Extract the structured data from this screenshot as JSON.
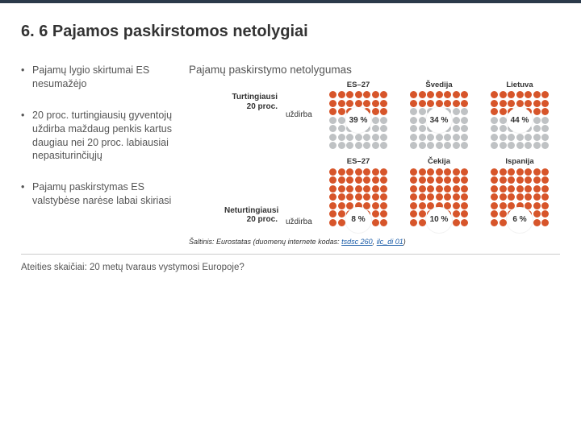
{
  "title": "6. 6 Pajamos paskirstomos netolygiai",
  "bullets": [
    "Pajamų lygio skirtumai ES nesumažėjo",
    "20 proc. turtingiausių gyventojų uždirba maždaug penkis kartus daugiau nei 20 proc. labiausiai nepasiturinčiųjų",
    "Pajamų paskirstymas ES valstybėse narėse labai skiriasi"
  ],
  "subtitle": "Pajamų paskirstymo netolygumas",
  "rows": [
    {
      "label": "Turtingiausi 20 proc.",
      "uzdirba": "uždirba",
      "uzdirba_pos": "top",
      "label_outer": true,
      "headers_above": true,
      "cells": [
        {
          "header": "ES–27",
          "value": "39 %",
          "rows": 7,
          "highlight_rows": 3,
          "primary": "#d7552a",
          "secondary": "#bfc2c4"
        },
        {
          "header": "Švedija",
          "value": "34 %",
          "rows": 7,
          "highlight_rows": 2,
          "primary": "#d7552a",
          "secondary": "#bfc2c4"
        },
        {
          "header": "Lietuva",
          "value": "44 %",
          "rows": 7,
          "highlight_rows": 3,
          "primary": "#d7552a",
          "secondary": "#bfc2c4"
        }
      ]
    },
    {
      "label": "Neturtingiausi 20 proc.",
      "uzdirba": "uždirba",
      "uzdirba_pos": "bottom",
      "label_outer": false,
      "headers_above": true,
      "cells": [
        {
          "header": "ES–27",
          "value": "8 %",
          "rows": 7,
          "highlight_rows": 1,
          "primary": "#d7552a",
          "secondary": "#bfc2c4"
        },
        {
          "header": "Čekija",
          "value": "10 %",
          "rows": 7,
          "highlight_rows": 1,
          "primary": "#d7552a",
          "secondary": "#bfc2c4"
        },
        {
          "header": "Ispanija",
          "value": "6 %",
          "rows": 7,
          "highlight_rows": 0,
          "primary": "#d7552a",
          "secondary": "#bfc2c4"
        }
      ]
    }
  ],
  "cols": 7,
  "source_label": "Šaltinis:",
  "source_text": "Eurostatas (duomenų internete kodas:",
  "source_links": [
    "tsdsc 260",
    "ilc_di 01"
  ],
  "footer": "Ateities skaičiai: 20 metų tvaraus vystymosi Europoje?"
}
